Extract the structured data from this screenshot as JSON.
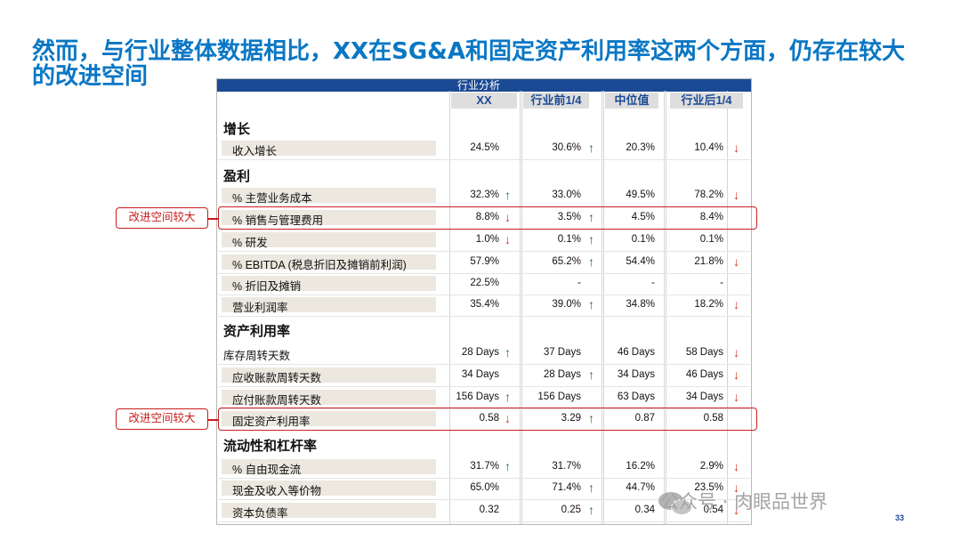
{
  "title": "然而，与行业整体数据相比，XX在SG&A和固定资产利用率这两个方面，仍存在较大的改进空间",
  "table": {
    "header": "行业分析",
    "columns": [
      "XX",
      "行业前1/4",
      "中位值",
      "行业后1/4"
    ],
    "sections": [
      {
        "name": "增长",
        "rows": [
          {
            "label": "收入增长",
            "values": [
              "24.5%",
              "30.6%",
              "20.3%",
              "10.4%"
            ],
            "arrows": [
              "",
              "up",
              "",
              "down"
            ]
          }
        ]
      },
      {
        "name": "盈利",
        "rows": [
          {
            "label": "% 主营业务成本",
            "values": [
              "32.3%",
              "33.0%",
              "49.5%",
              "78.2%"
            ],
            "arrows": [
              "up",
              "",
              "",
              "down"
            ]
          },
          {
            "label": "% 销售与管理费用",
            "values": [
              "8.8%",
              "3.5%",
              "4.5%",
              "8.4%"
            ],
            "arrows": [
              "down",
              "up",
              "",
              ""
            ],
            "highlight": true
          },
          {
            "label": "% 研发",
            "values": [
              "1.0%",
              "0.1%",
              "0.1%",
              "0.1%"
            ],
            "arrows": [
              "down",
              "up",
              "",
              ""
            ]
          },
          {
            "label": "% EBITDA (税息折旧及摊销前利润)",
            "values": [
              "57.9%",
              "65.2%",
              "54.4%",
              "21.8%"
            ],
            "arrows": [
              "",
              "up",
              "",
              "down"
            ]
          },
          {
            "label": "% 折旧及摊销",
            "values": [
              "22.5%",
              "-",
              "-",
              "-"
            ],
            "arrows": [
              "",
              "",
              "",
              ""
            ]
          },
          {
            "label": "营业利润率",
            "values": [
              "35.4%",
              "39.0%",
              "34.8%",
              "18.2%"
            ],
            "arrows": [
              "",
              "up",
              "",
              "down"
            ]
          }
        ]
      },
      {
        "name": "资产利用率",
        "rows": [
          {
            "label": "库存周转天数",
            "values": [
              "28 Days",
              "37 Days",
              "46 Days",
              "58 Days"
            ],
            "arrows": [
              "up",
              "",
              "",
              "down"
            ]
          },
          {
            "label": "应收账款周转天数",
            "values": [
              "34 Days",
              "28 Days",
              "34 Days",
              "46 Days"
            ],
            "arrows": [
              "",
              "up",
              "",
              "down"
            ]
          },
          {
            "label": "应付账款周转天数",
            "values": [
              "156 Days",
              "156 Days",
              "63 Days",
              "34 Days"
            ],
            "arrows": [
              "up",
              "",
              "",
              "down"
            ]
          },
          {
            "label": "固定资产利用率",
            "values": [
              "0.58",
              "3.29",
              "0.87",
              "0.58"
            ],
            "arrows": [
              "down",
              "up",
              "",
              ""
            ],
            "highlight": true
          }
        ]
      },
      {
        "name": "流动性和杠杆率",
        "rows": [
          {
            "label": "% 自由现金流",
            "values": [
              "31.7%",
              "31.7%",
              "16.2%",
              "2.9%"
            ],
            "arrows": [
              "up",
              "",
              "",
              "down"
            ]
          },
          {
            "label": "现金及收入等价物",
            "values": [
              "65.0%",
              "71.4%",
              "44.7%",
              "23.5%"
            ],
            "arrows": [
              "",
              "up",
              "",
              "down"
            ]
          },
          {
            "label": "资本负债率",
            "values": [
              "0.32",
              "0.25",
              "0.34",
              "0.54"
            ],
            "arrows": [
              "",
              "up",
              "",
              "down"
            ]
          }
        ]
      }
    ]
  },
  "callout_text": "改进空间较大",
  "watermark": "公众号 · 肉眼品世界",
  "page_number": "33",
  "colors": {
    "title": "#0a77c4",
    "header_bg": "#1b4a94",
    "highlight": "#c81e1e",
    "up_arrow": "#1e7a1e",
    "down_arrow": "#d93025"
  }
}
